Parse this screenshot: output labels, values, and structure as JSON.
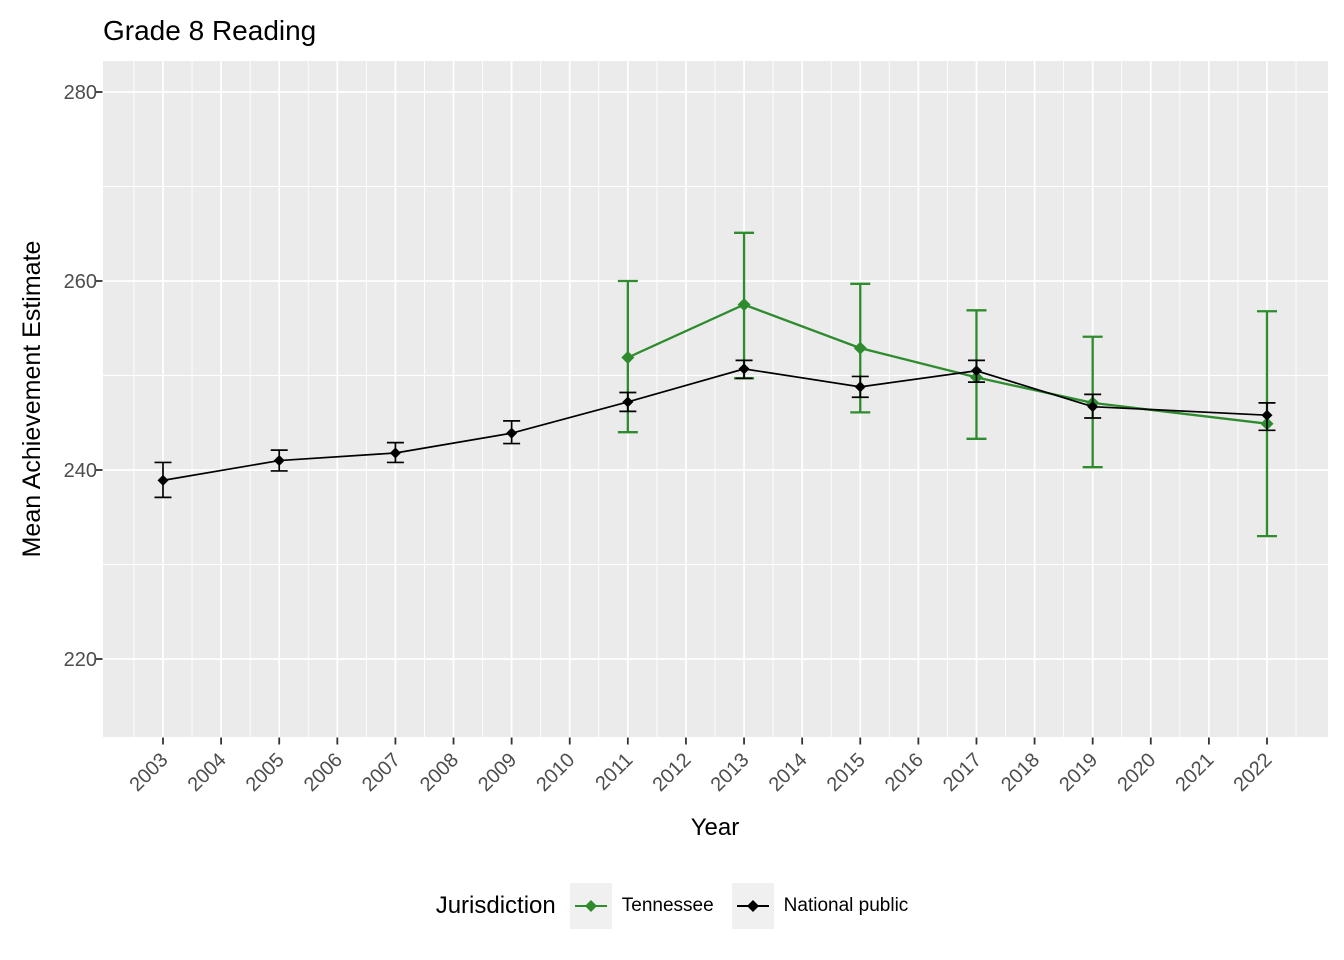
{
  "title": "Grade 8 Reading",
  "axes": {
    "x_label": "Year",
    "y_label": "Mean Achievement Estimate",
    "x_tick_labels": [
      "2003",
      "2004",
      "2005",
      "2006",
      "2007",
      "2008",
      "2009",
      "2010",
      "2011",
      "2012",
      "2013",
      "2014",
      "2015",
      "2016",
      "2017",
      "2018",
      "2019",
      "2020",
      "2021",
      "2022"
    ],
    "y_tick_labels": [
      "220",
      "240",
      "260",
      "280"
    ]
  },
  "legend": {
    "title": "Jurisdiction",
    "entries": [
      {
        "label": "Tennessee",
        "color": "#2e8b2e"
      },
      {
        "label": "National public",
        "color": "#000000"
      }
    ]
  },
  "colors": {
    "panel_background": "#ebebeb",
    "gridline": "#ffffff",
    "axis_text": "#4d4d4d",
    "tick_mark": "#333333",
    "tennessee": "#2e8b2e",
    "national_public": "#000000"
  },
  "chart_data": {
    "type": "line",
    "title": "Grade 8 Reading",
    "xlabel": "Year",
    "ylabel": "Mean Achievement Estimate",
    "x_ticks": [
      2003,
      2004,
      2005,
      2006,
      2007,
      2008,
      2009,
      2010,
      2011,
      2012,
      2013,
      2014,
      2015,
      2016,
      2017,
      2018,
      2019,
      2020,
      2021,
      2022
    ],
    "y_breaks": [
      220,
      240,
      260,
      280
    ],
    "y_minor_breaks": [
      230,
      250,
      270
    ],
    "xlim": [
      2002.0,
      2023.0
    ],
    "ylim": [
      211.5,
      283.3
    ],
    "grid": true,
    "legend_position": "bottom",
    "error_bars": true,
    "series": [
      {
        "name": "Tennessee",
        "color": "#2e8b2e",
        "points": [
          {
            "x": 2011,
            "y": 251.9,
            "lo": 244.0,
            "hi": 260.0
          },
          {
            "x": 2013,
            "y": 257.5,
            "lo": 249.7,
            "hi": 265.1
          },
          {
            "x": 2015,
            "y": 252.9,
            "lo": 246.1,
            "hi": 259.7
          },
          {
            "x": 2017,
            "y": 249.8,
            "lo": 243.3,
            "hi": 256.9
          },
          {
            "x": 2019,
            "y": 247.1,
            "lo": 240.3,
            "hi": 254.1
          },
          {
            "x": 2022,
            "y": 244.9,
            "lo": 233.0,
            "hi": 256.8
          }
        ]
      },
      {
        "name": "National public",
        "color": "#000000",
        "points": [
          {
            "x": 2003,
            "y": 238.9,
            "lo": 237.1,
            "hi": 240.8
          },
          {
            "x": 2005,
            "y": 241.0,
            "lo": 239.9,
            "hi": 242.1
          },
          {
            "x": 2007,
            "y": 241.8,
            "lo": 240.8,
            "hi": 242.9
          },
          {
            "x": 2009,
            "y": 243.9,
            "lo": 242.8,
            "hi": 245.2
          },
          {
            "x": 2011,
            "y": 247.2,
            "lo": 246.2,
            "hi": 248.2
          },
          {
            "x": 2013,
            "y": 250.7,
            "lo": 249.7,
            "hi": 251.6
          },
          {
            "x": 2015,
            "y": 248.8,
            "lo": 247.7,
            "hi": 249.9
          },
          {
            "x": 2017,
            "y": 250.5,
            "lo": 249.3,
            "hi": 251.6
          },
          {
            "x": 2019,
            "y": 246.7,
            "lo": 245.5,
            "hi": 248.0
          },
          {
            "x": 2022,
            "y": 245.8,
            "lo": 244.2,
            "hi": 247.1
          }
        ]
      }
    ]
  }
}
